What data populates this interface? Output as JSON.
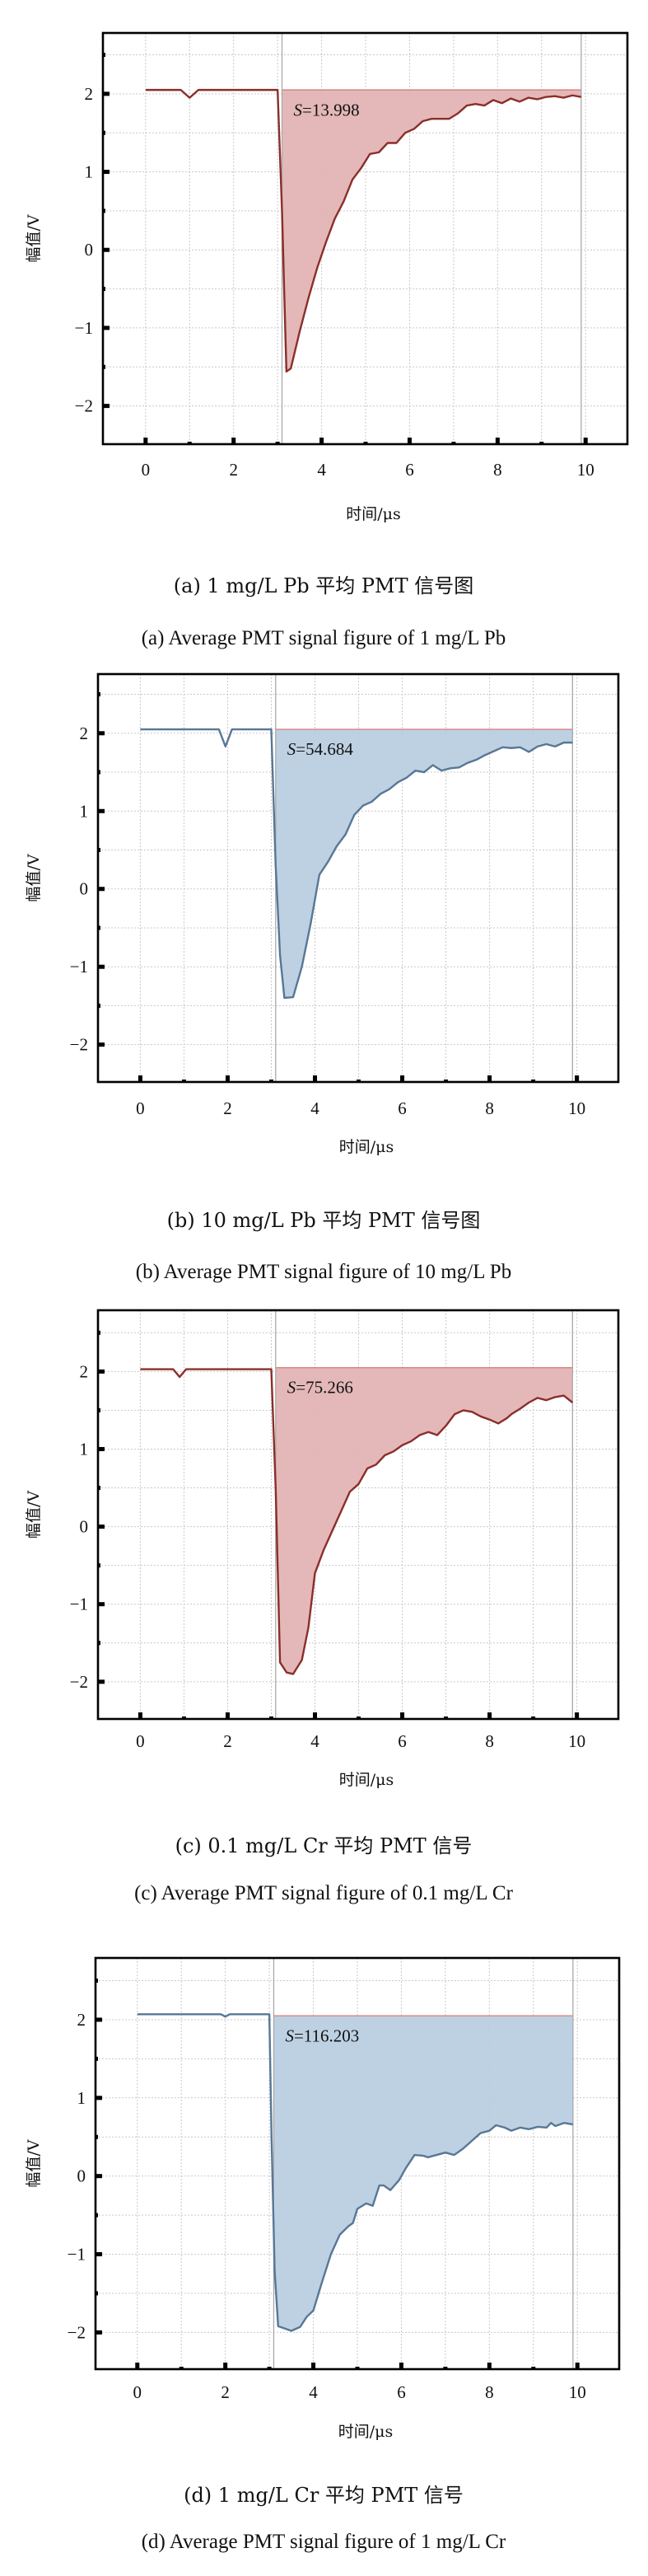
{
  "colors": {
    "red_line": "#8b2e2a",
    "red_fill": "#e3b4b4",
    "red_baseline": "#d9817f",
    "blue_line": "#587796",
    "blue_fill": "#b9cfe2",
    "blue_baseline": "#d9817f",
    "grid": "#c9c9c9",
    "cursor": "#a9a9a9",
    "frame": "#000000"
  },
  "chart_data": [
    {
      "id": "a",
      "type": "area",
      "theme": "red",
      "xlabel": "时间/μs",
      "ylabel": "幅值/V",
      "xlim": [
        -0.97,
        10.95
      ],
      "ylim": [
        -2.49,
        2.78
      ],
      "xticks": [
        0,
        2,
        4,
        6,
        8,
        10
      ],
      "xtick_labels": [
        "0",
        "2",
        "4",
        "6",
        "8",
        "10"
      ],
      "yticks": [
        -2,
        -1,
        0,
        1,
        2
      ],
      "ytick_labels": [
        "−2",
        "−1",
        "0",
        "1",
        "2"
      ],
      "grid": true,
      "integration_range": [
        3.1,
        9.9
      ],
      "baseline": 2.05,
      "area_label_prefix": "S",
      "area_label_value": "=13.998",
      "caption_cn": "(a) 1 mg/L Pb 平均 PMT 信号图",
      "caption_en": "(a) Average PMT signal figure of 1 mg/L Pb",
      "series": {
        "x": [
          0,
          0.8,
          1.0,
          1.2,
          2.0,
          3.0,
          3.1,
          3.2,
          3.3,
          3.5,
          3.7,
          3.9,
          4.1,
          4.3,
          4.5,
          4.7,
          4.9,
          5.1,
          5.3,
          5.5,
          5.7,
          5.9,
          6.1,
          6.3,
          6.5,
          6.7,
          6.9,
          7.1,
          7.3,
          7.5,
          7.7,
          7.9,
          8.1,
          8.3,
          8.5,
          8.7,
          8.9,
          9.1,
          9.3,
          9.5,
          9.7,
          9.9
        ],
        "y": [
          2.05,
          2.05,
          1.95,
          2.05,
          2.05,
          2.05,
          0.5,
          -1.56,
          -1.52,
          -1.05,
          -0.62,
          -0.23,
          0.1,
          0.4,
          0.62,
          0.9,
          1.05,
          1.23,
          1.25,
          1.37,
          1.37,
          1.5,
          1.55,
          1.65,
          1.68,
          1.68,
          1.68,
          1.75,
          1.85,
          1.87,
          1.85,
          1.92,
          1.88,
          1.94,
          1.9,
          1.95,
          1.93,
          1.96,
          1.97,
          1.95,
          1.98,
          1.96
        ]
      }
    },
    {
      "id": "b",
      "type": "area",
      "theme": "blue",
      "xlabel": "时间/μs",
      "ylabel": "幅值/V",
      "xlim": [
        -0.97,
        10.95
      ],
      "ylim": [
        -2.48,
        2.76
      ],
      "xticks": [
        0,
        2,
        4,
        6,
        8,
        10
      ],
      "xtick_labels": [
        "0",
        "2",
        "4",
        "6",
        "8",
        "10"
      ],
      "yticks": [
        -2,
        -1,
        0,
        1,
        2
      ],
      "ytick_labels": [
        "−2",
        "−1",
        "0",
        "1",
        "2"
      ],
      "grid": true,
      "integration_range": [
        3.1,
        9.9
      ],
      "baseline": 2.05,
      "area_label_prefix": "S",
      "area_label_value": "=54.684",
      "caption_cn": "(b) 10 mg/L Pb 平均 PMT 信号图",
      "caption_en": "(b) Average PMT signal figure of 10 mg/L Pb",
      "series": {
        "x": [
          0,
          1.8,
          1.95,
          2.1,
          3.0,
          3.1,
          3.2,
          3.3,
          3.5,
          3.7,
          3.9,
          4.1,
          4.3,
          4.5,
          4.7,
          4.9,
          5.1,
          5.3,
          5.5,
          5.7,
          5.9,
          6.1,
          6.3,
          6.5,
          6.7,
          6.9,
          7.1,
          7.3,
          7.5,
          7.7,
          7.9,
          8.1,
          8.3,
          8.5,
          8.7,
          8.9,
          9.1,
          9.3,
          9.5,
          9.7,
          9.9
        ],
        "y": [
          2.05,
          2.05,
          1.83,
          2.05,
          2.05,
          0.3,
          -0.85,
          -1.4,
          -1.39,
          -1.0,
          -0.45,
          0.18,
          0.35,
          0.55,
          0.7,
          0.95,
          1.07,
          1.12,
          1.22,
          1.28,
          1.37,
          1.43,
          1.52,
          1.5,
          1.59,
          1.52,
          1.55,
          1.56,
          1.62,
          1.66,
          1.72,
          1.77,
          1.82,
          1.81,
          1.82,
          1.76,
          1.83,
          1.86,
          1.83,
          1.88,
          1.88
        ]
      }
    },
    {
      "id": "c",
      "type": "area",
      "theme": "red",
      "xlabel": "时间/μs",
      "ylabel": "幅值/V",
      "xlim": [
        -0.97,
        10.95
      ],
      "ylim": [
        -2.48,
        2.79
      ],
      "xticks": [
        0,
        2,
        4,
        6,
        8,
        10
      ],
      "xtick_labels": [
        "0",
        "2",
        "4",
        "6",
        "8",
        "10"
      ],
      "yticks": [
        -2,
        -1,
        0,
        1,
        2
      ],
      "ytick_labels": [
        "−2",
        "−1",
        "0",
        "1",
        "2"
      ],
      "grid": true,
      "integration_range": [
        3.1,
        9.9
      ],
      "baseline": 2.05,
      "area_label_prefix": "S",
      "area_label_value": "=75.266",
      "caption_cn": "(c) 0.1 mg/L Cr 平均 PMT 信号",
      "caption_en": "(c) Average PMT signal figure of 0.1 mg/L Cr",
      "series": {
        "x": [
          0,
          0.75,
          0.9,
          1.05,
          2.0,
          3.0,
          3.1,
          3.2,
          3.35,
          3.5,
          3.7,
          3.85,
          4.0,
          4.2,
          4.4,
          4.6,
          4.8,
          5.0,
          5.2,
          5.4,
          5.6,
          5.8,
          6.0,
          6.2,
          6.4,
          6.6,
          6.8,
          7.0,
          7.2,
          7.4,
          7.6,
          7.8,
          8.0,
          8.2,
          8.4,
          8.5,
          8.7,
          8.9,
          9.1,
          9.3,
          9.5,
          9.7,
          9.9
        ],
        "y": [
          2.03,
          2.03,
          1.93,
          2.03,
          2.03,
          2.03,
          0.5,
          -1.75,
          -1.88,
          -1.9,
          -1.72,
          -1.3,
          -0.6,
          -0.3,
          -0.05,
          0.2,
          0.45,
          0.55,
          0.75,
          0.8,
          0.92,
          0.97,
          1.05,
          1.1,
          1.18,
          1.22,
          1.18,
          1.3,
          1.45,
          1.5,
          1.48,
          1.42,
          1.38,
          1.33,
          1.4,
          1.45,
          1.52,
          1.6,
          1.66,
          1.63,
          1.67,
          1.69,
          1.6
        ]
      }
    },
    {
      "id": "d",
      "type": "area",
      "theme": "blue",
      "xlabel": "时间/μs",
      "ylabel": "幅值/V",
      "xlim": [
        -0.95,
        10.95
      ],
      "ylim": [
        -2.47,
        2.79
      ],
      "xticks": [
        0,
        2,
        4,
        6,
        8,
        10
      ],
      "xtick_labels": [
        "0",
        "2",
        "4",
        "6",
        "8",
        "10"
      ],
      "yticks": [
        -2,
        -1,
        0,
        1,
        2
      ],
      "ytick_labels": [
        "−2",
        "−1",
        "0",
        "1",
        "2"
      ],
      "grid": true,
      "integration_range": [
        3.1,
        9.9
      ],
      "baseline": 2.05,
      "area_label_prefix": "S",
      "area_label_value": "=116.203",
      "caption_cn": "(d) 1 mg/L Cr 平均 PMT 信号",
      "caption_en": "(d) Average PMT signal figure of 1 mg/L Cr",
      "series": {
        "x": [
          0,
          1.9,
          2.0,
          2.1,
          3.0,
          3.05,
          3.12,
          3.2,
          3.35,
          3.5,
          3.7,
          3.85,
          4.0,
          4.2,
          4.4,
          4.6,
          4.8,
          4.9,
          5.0,
          5.2,
          5.35,
          5.5,
          5.6,
          5.75,
          5.95,
          6.1,
          6.3,
          6.5,
          6.6,
          6.8,
          7.0,
          7.2,
          7.4,
          7.6,
          7.8,
          8.0,
          8.15,
          8.35,
          8.5,
          8.7,
          8.9,
          9.1,
          9.3,
          9.4,
          9.5,
          9.7,
          9.9
        ],
        "y": [
          2.07,
          2.07,
          2.04,
          2.07,
          2.07,
          0.5,
          -1.2,
          -1.92,
          -1.95,
          -1.98,
          -1.93,
          -1.8,
          -1.72,
          -1.35,
          -1.0,
          -0.75,
          -0.64,
          -0.6,
          -0.42,
          -0.35,
          -0.38,
          -0.12,
          -0.12,
          -0.18,
          -0.05,
          0.1,
          0.27,
          0.26,
          0.24,
          0.27,
          0.3,
          0.27,
          0.35,
          0.45,
          0.55,
          0.58,
          0.65,
          0.62,
          0.58,
          0.62,
          0.6,
          0.63,
          0.62,
          0.68,
          0.64,
          0.68,
          0.66
        ]
      }
    }
  ]
}
